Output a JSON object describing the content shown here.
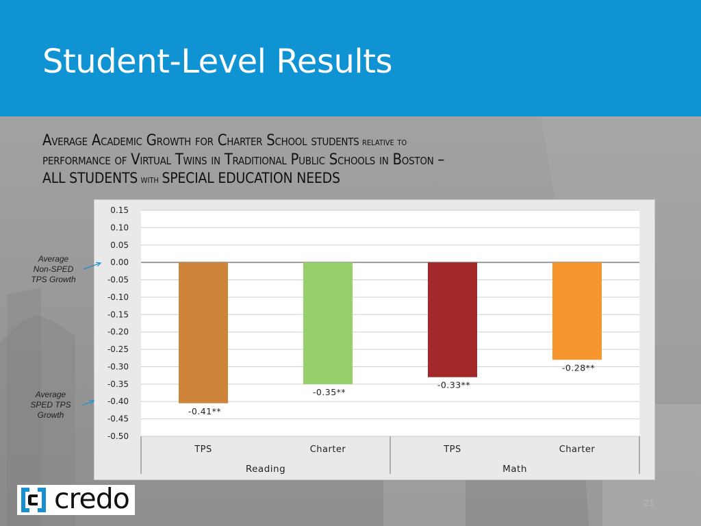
{
  "slide": {
    "title": "Student-Level Results",
    "subtitle": {
      "line1": "Average Academic Growth for Charter School students",
      "line1_small": "relative to",
      "line2": "performance of Virtual Twins in Traditional Public Schools in Boston –",
      "line3a": "ALL STUDENTS",
      "line3b": "with",
      "line3c": "SPECIAL EDUCATION NEEDS"
    },
    "page_number": "21",
    "logo_text": "credo"
  },
  "annotations": {
    "non_sped": [
      "Average",
      "Non-SPED",
      "TPS Growth"
    ],
    "sped": [
      "Average",
      "SPED TPS",
      "Growth"
    ]
  },
  "colors": {
    "header": "#0f93d2",
    "tps_reading": "#cf843b",
    "charter_reading": "#95d06a",
    "tps_math": "#a3282a",
    "charter_math": "#f7952e",
    "arrow": "#1f8fd6"
  },
  "chart_data": {
    "type": "bar",
    "ylim": [
      -0.5,
      0.15
    ],
    "y_ticks": [
      "0.15",
      "0.10",
      "0.05",
      "0.00",
      "-0.05",
      "-0.10",
      "-0.15",
      "-0.20",
      "-0.25",
      "-0.30",
      "-0.35",
      "-0.40",
      "-0.45",
      "-0.50"
    ],
    "y_tick_values": [
      0.15,
      0.1,
      0.05,
      0.0,
      -0.05,
      -0.1,
      -0.15,
      -0.2,
      -0.25,
      -0.3,
      -0.35,
      -0.4,
      -0.45,
      -0.5
    ],
    "grid": true,
    "groups": [
      "Reading",
      "Math"
    ],
    "categories": [
      "TPS",
      "Charter",
      "TPS",
      "Charter"
    ],
    "values": [
      -0.405,
      -0.35,
      -0.33,
      -0.28
    ],
    "labels": [
      "-0.41**",
      "-0.35**",
      "-0.33**",
      "-0.28**"
    ],
    "bar_colors": [
      "#cf843b",
      "#95d06a",
      "#a3282a",
      "#f7952e"
    ]
  }
}
